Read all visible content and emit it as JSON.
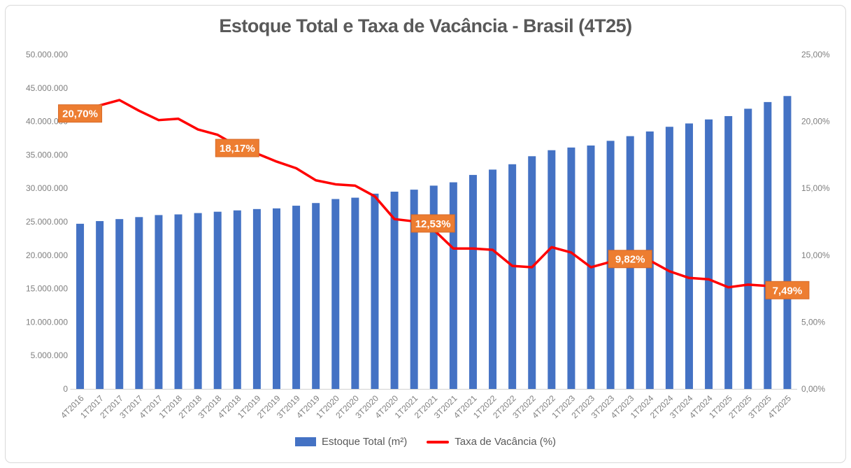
{
  "chart_data": {
    "type": "bar+line combo, dual axis",
    "title": "Estoque Total e Taxa de Vacância - Brasil (4T25)",
    "categories": [
      "4T2016",
      "1T2017",
      "2T2017",
      "3T2017",
      "4T2017",
      "1T2018",
      "2T2018",
      "3T2018",
      "4T2018",
      "1T2019",
      "2T2019",
      "3T2019",
      "4T2019",
      "1T2020",
      "2T2020",
      "3T2020",
      "4T2020",
      "1T2021",
      "2T2021",
      "3T2021",
      "4T2021",
      "1T2022",
      "2T2022",
      "3T2022",
      "4T2022",
      "1T2023",
      "2T2023",
      "3T2023",
      "4T2023",
      "1T2024",
      "2T2024",
      "3T2024",
      "4T2024",
      "1T2025",
      "2T2025",
      "3T2025",
      "4T2025"
    ],
    "series": [
      {
        "name": "Estoque Total (m²)",
        "type": "bar",
        "axis": "left",
        "color": "#4472C4",
        "values": [
          24700000,
          25100000,
          25400000,
          25700000,
          26000000,
          26100000,
          26300000,
          26500000,
          26700000,
          26900000,
          27000000,
          27400000,
          27800000,
          28400000,
          28600000,
          29200000,
          29500000,
          29800000,
          30400000,
          30900000,
          32000000,
          32800000,
          33600000,
          34800000,
          35700000,
          36100000,
          36400000,
          37100000,
          37800000,
          38500000,
          39200000,
          39700000,
          40300000,
          40800000,
          41900000,
          42900000,
          43800000
        ]
      },
      {
        "name": "Taxa de Vacância (%)",
        "type": "line",
        "axis": "right",
        "color": "#FF0000",
        "values": [
          20.7,
          21.2,
          21.6,
          20.8,
          20.1,
          20.2,
          19.4,
          19.0,
          18.17,
          17.6,
          17.0,
          16.5,
          15.6,
          15.3,
          15.2,
          14.4,
          12.7,
          12.53,
          11.9,
          10.5,
          10.5,
          10.4,
          9.2,
          9.1,
          10.6,
          10.2,
          9.1,
          9.5,
          9.82,
          9.6,
          8.8,
          8.3,
          8.2,
          7.6,
          7.8,
          7.7,
          7.49
        ]
      }
    ],
    "left_axis": {
      "min": 0,
      "max": 50000000,
      "tick_labels": [
        "50.000.000",
        "45.000.000",
        "40.000.000",
        "35.000.000",
        "30.000.000",
        "25.000.000",
        "20.000.000",
        "15.000.000",
        "10.000.000",
        "5.000.000",
        "0"
      ]
    },
    "right_axis": {
      "min": 0,
      "max": 25,
      "tick_labels": [
        "25,00%",
        "20,00%",
        "15,00%",
        "10,00%",
        "5,00%",
        "0,00%"
      ]
    },
    "grid": false,
    "legend_position": "bottom",
    "x_tick_rotation": 45,
    "callout_color": "#ED7D31",
    "callouts": [
      {
        "text": "20,70%",
        "category": "4T2016",
        "index": 0
      },
      {
        "text": "18,17%",
        "category": "4T2018",
        "index": 8
      },
      {
        "text": "12,53%",
        "category": "1T2021",
        "index": 17
      },
      {
        "text": "9,82%",
        "category": "4T2023",
        "index": 28
      },
      {
        "text": "7,49%",
        "category": "4T2025",
        "index": 36
      }
    ]
  }
}
